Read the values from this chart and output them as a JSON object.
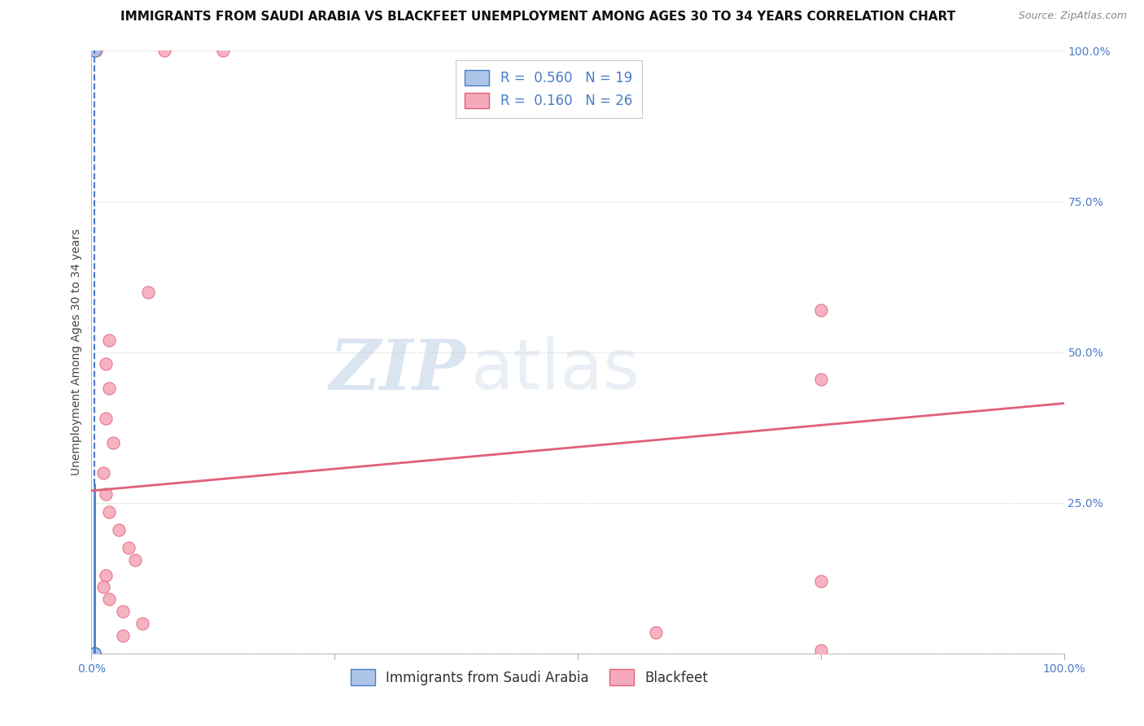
{
  "title": "IMMIGRANTS FROM SAUDI ARABIA VS BLACKFEET UNEMPLOYMENT AMONG AGES 30 TO 34 YEARS CORRELATION CHART",
  "source": "Source: ZipAtlas.com",
  "ylabel": "Unemployment Among Ages 30 to 34 years",
  "xlim": [
    0.0,
    1.0
  ],
  "ylim": [
    0.0,
    1.0
  ],
  "ytick_vals": [
    0.0,
    0.25,
    0.5,
    0.75,
    1.0
  ],
  "ytick_labels": [
    "",
    "25.0%",
    "50.0%",
    "75.0%",
    "100.0%"
  ],
  "xtick_vals": [
    0.0,
    0.25,
    0.5,
    0.75,
    1.0
  ],
  "xtick_labels": [
    "0.0%",
    "",
    "",
    "",
    "100.0%"
  ],
  "legend_blue_R": "0.560",
  "legend_blue_N": "19",
  "legend_pink_R": "0.160",
  "legend_pink_N": "26",
  "legend_label_blue": "Immigrants from Saudi Arabia",
  "legend_label_pink": "Blackfeet",
  "watermark_zip": "ZIP",
  "watermark_atlas": "atlas",
  "blue_color": "#adc6e8",
  "pink_color": "#f5aabb",
  "blue_line_color": "#4a7cc7",
  "pink_line_color": "#e0607a",
  "blue_edge_color": "#4a7cc7",
  "pink_edge_color": "#e0607a",
  "scatter_blue": [
    [
      0.003,
      1.0
    ],
    [
      0.003,
      0.0
    ],
    [
      0.003,
      0.0
    ],
    [
      0.003,
      0.0
    ],
    [
      0.003,
      0.0
    ],
    [
      0.003,
      0.0
    ],
    [
      0.003,
      0.0
    ],
    [
      0.003,
      0.0
    ],
    [
      0.003,
      0.0
    ],
    [
      0.003,
      0.0
    ],
    [
      0.003,
      0.0
    ],
    [
      0.003,
      0.0
    ],
    [
      0.003,
      0.0
    ],
    [
      0.003,
      0.0
    ],
    [
      0.003,
      0.0
    ],
    [
      0.003,
      0.0
    ],
    [
      0.003,
      0.0
    ],
    [
      0.003,
      0.0
    ],
    [
      0.003,
      0.0
    ]
  ],
  "scatter_pink": [
    [
      0.005,
      1.0
    ],
    [
      0.075,
      1.0
    ],
    [
      0.135,
      1.0
    ],
    [
      0.058,
      0.6
    ],
    [
      0.018,
      0.52
    ],
    [
      0.015,
      0.48
    ],
    [
      0.018,
      0.44
    ],
    [
      0.015,
      0.39
    ],
    [
      0.022,
      0.35
    ],
    [
      0.012,
      0.3
    ],
    [
      0.015,
      0.265
    ],
    [
      0.018,
      0.235
    ],
    [
      0.028,
      0.205
    ],
    [
      0.038,
      0.175
    ],
    [
      0.045,
      0.155
    ],
    [
      0.015,
      0.13
    ],
    [
      0.012,
      0.11
    ],
    [
      0.018,
      0.09
    ],
    [
      0.032,
      0.07
    ],
    [
      0.052,
      0.05
    ],
    [
      0.032,
      0.03
    ],
    [
      0.75,
      0.57
    ],
    [
      0.75,
      0.455
    ],
    [
      0.75,
      0.12
    ],
    [
      0.58,
      0.035
    ],
    [
      0.75,
      0.005
    ]
  ],
  "blue_trendline_dashed": [
    [
      0.003,
      1.05
    ],
    [
      0.003,
      0.28
    ]
  ],
  "blue_trendline_solid": [
    [
      0.003,
      0.28
    ],
    [
      0.003,
      0.0
    ]
  ],
  "pink_trendline": [
    [
      0.0,
      0.27
    ],
    [
      1.0,
      0.415
    ]
  ],
  "grid_color": "#cccccc",
  "background_color": "#ffffff",
  "title_fontsize": 11,
  "axis_label_fontsize": 10,
  "tick_fontsize": 10,
  "legend_fontsize": 12,
  "source_fontsize": 9,
  "marker_size": 120
}
